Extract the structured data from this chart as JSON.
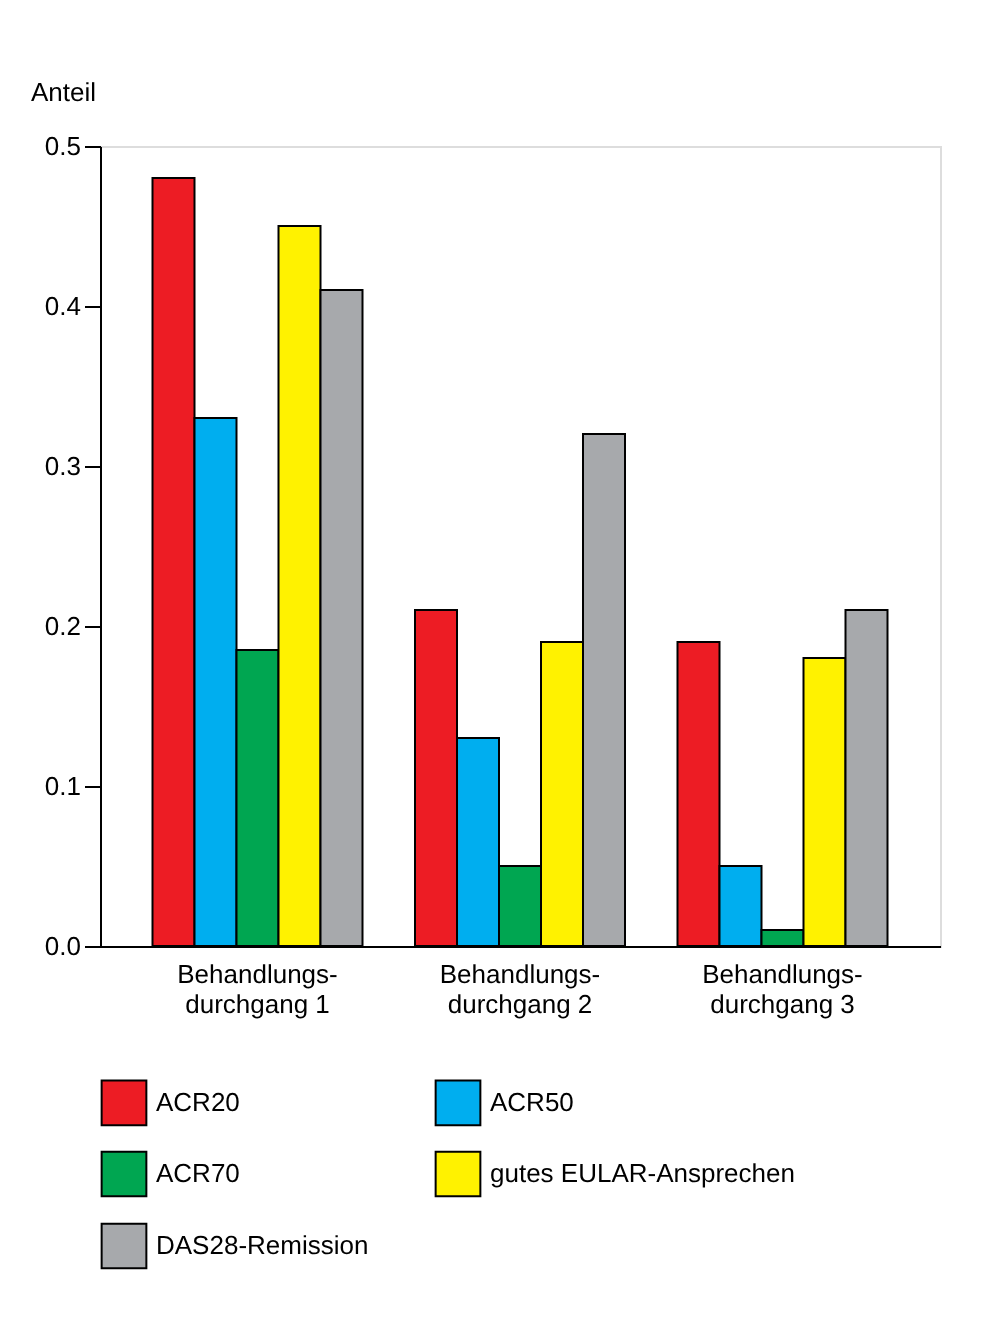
{
  "chart_data": {
    "type": "bar",
    "ylabel": "Anteil",
    "categories": [
      "Behandlungs-\ndurchgang 1",
      "Behandlungs-\ndurchgang 2",
      "Behandlungs-\ndurchgang 3"
    ],
    "series": [
      {
        "name": "ACR20",
        "color": "#ed1c24",
        "values": [
          0.48,
          0.21,
          0.19
        ]
      },
      {
        "name": "ACR50",
        "color": "#00aeef",
        "values": [
          0.33,
          0.13,
          0.05
        ]
      },
      {
        "name": "ACR70",
        "color": "#00a651",
        "values": [
          0.185,
          0.05,
          0.01
        ]
      },
      {
        "name": "gutes EULAR-Ansprechen",
        "color": "#fff200",
        "values": [
          0.45,
          0.19,
          0.18
        ]
      },
      {
        "name": "DAS28-Remission",
        "color": "#a7a9ac",
        "values": [
          0.41,
          0.32,
          0.21
        ]
      }
    ],
    "ylim": [
      0,
      0.5
    ],
    "yticks": [
      {
        "value": 0,
        "label": "0.0"
      },
      0.1,
      0.2,
      0.3,
      0.4,
      0.5
    ],
    "grid": false,
    "legend": "bottom"
  }
}
